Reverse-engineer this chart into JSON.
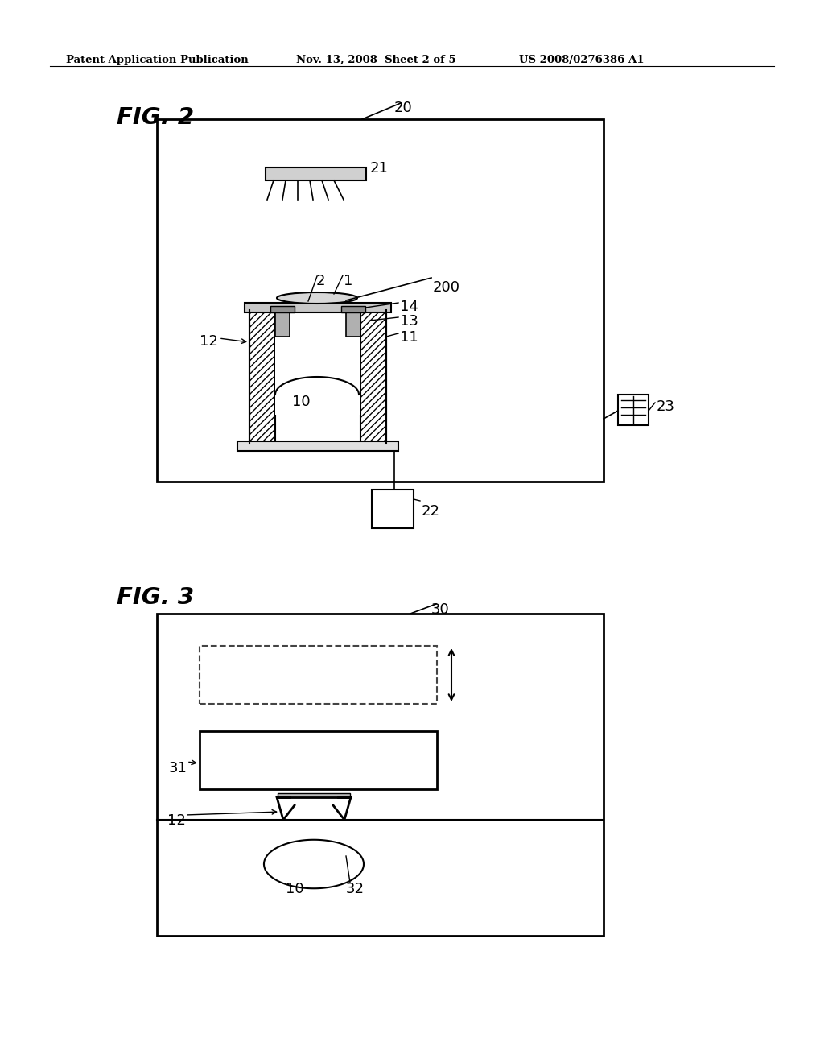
{
  "bg_color": "#ffffff",
  "header_text": "Patent Application Publication",
  "header_date": "Nov. 13, 2008  Sheet 2 of 5",
  "header_patent": "US 2008/0276386 A1",
  "fig2_label": "FIG. 2",
  "fig3_label": "FIG. 3",
  "label_color": "#000000",
  "line_color": "#000000"
}
